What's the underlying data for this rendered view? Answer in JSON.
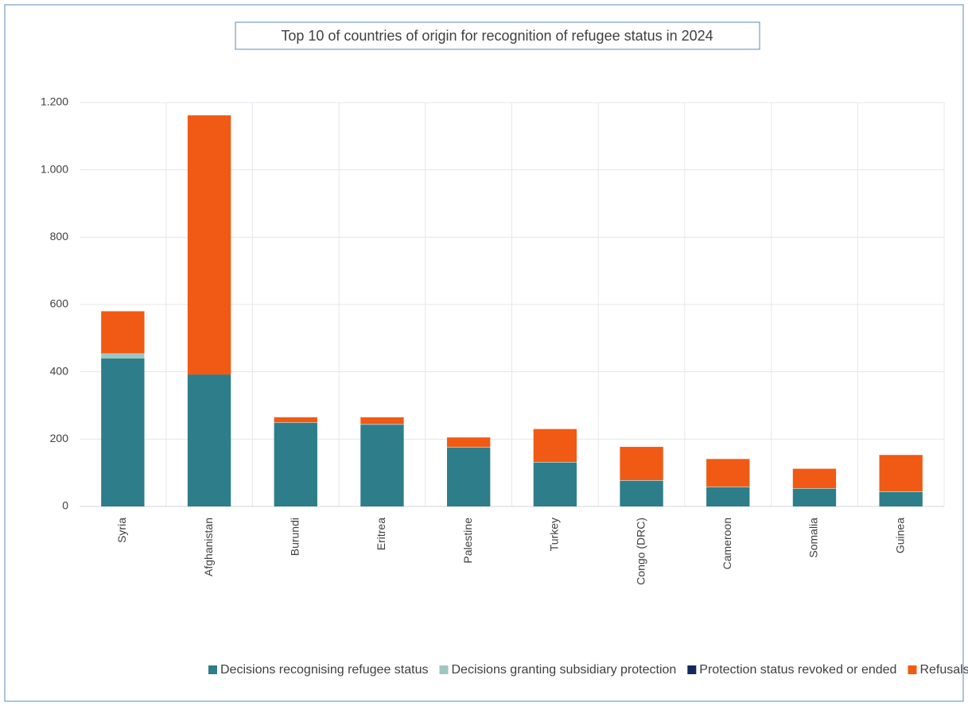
{
  "chart_data": {
    "type": "stacked_bar",
    "title": "Top 10 of countries of origin for recognition of refugee status in 2024",
    "categories": [
      "Syria",
      "Afghanistan",
      "Burundi",
      "Eritrea",
      "Palestine",
      "Turkey",
      "Congo (DRC)",
      "Cameroon",
      "Somalia",
      "Guinea"
    ],
    "series": [
      {
        "name": "Decisions recognising refugee status",
        "color": "#2e7d8a",
        "values": [
          440,
          392,
          248,
          243,
          175,
          130,
          76,
          57,
          52,
          43
        ]
      },
      {
        "name": "Decisions granting subsidiary protection",
        "color": "#9cc7c3",
        "values": [
          15,
          0,
          2,
          2,
          2,
          2,
          2,
          2,
          2,
          2
        ]
      },
      {
        "name": "Protection status revoked or ended",
        "color": "#14285e",
        "values": [
          0,
          0,
          0,
          0,
          0,
          0,
          0,
          0,
          0,
          0
        ]
      },
      {
        "name": "Refusals",
        "color": "#f05a14",
        "values": [
          125,
          770,
          15,
          20,
          28,
          98,
          99,
          82,
          58,
          108
        ]
      }
    ],
    "ylim": [
      0,
      1200
    ],
    "yticks": [
      0,
      200,
      400,
      600,
      800,
      {
        "value": 1000,
        "label": "1.000"
      },
      {
        "value": 1200,
        "label": "1.200"
      }
    ],
    "grid": true
  }
}
